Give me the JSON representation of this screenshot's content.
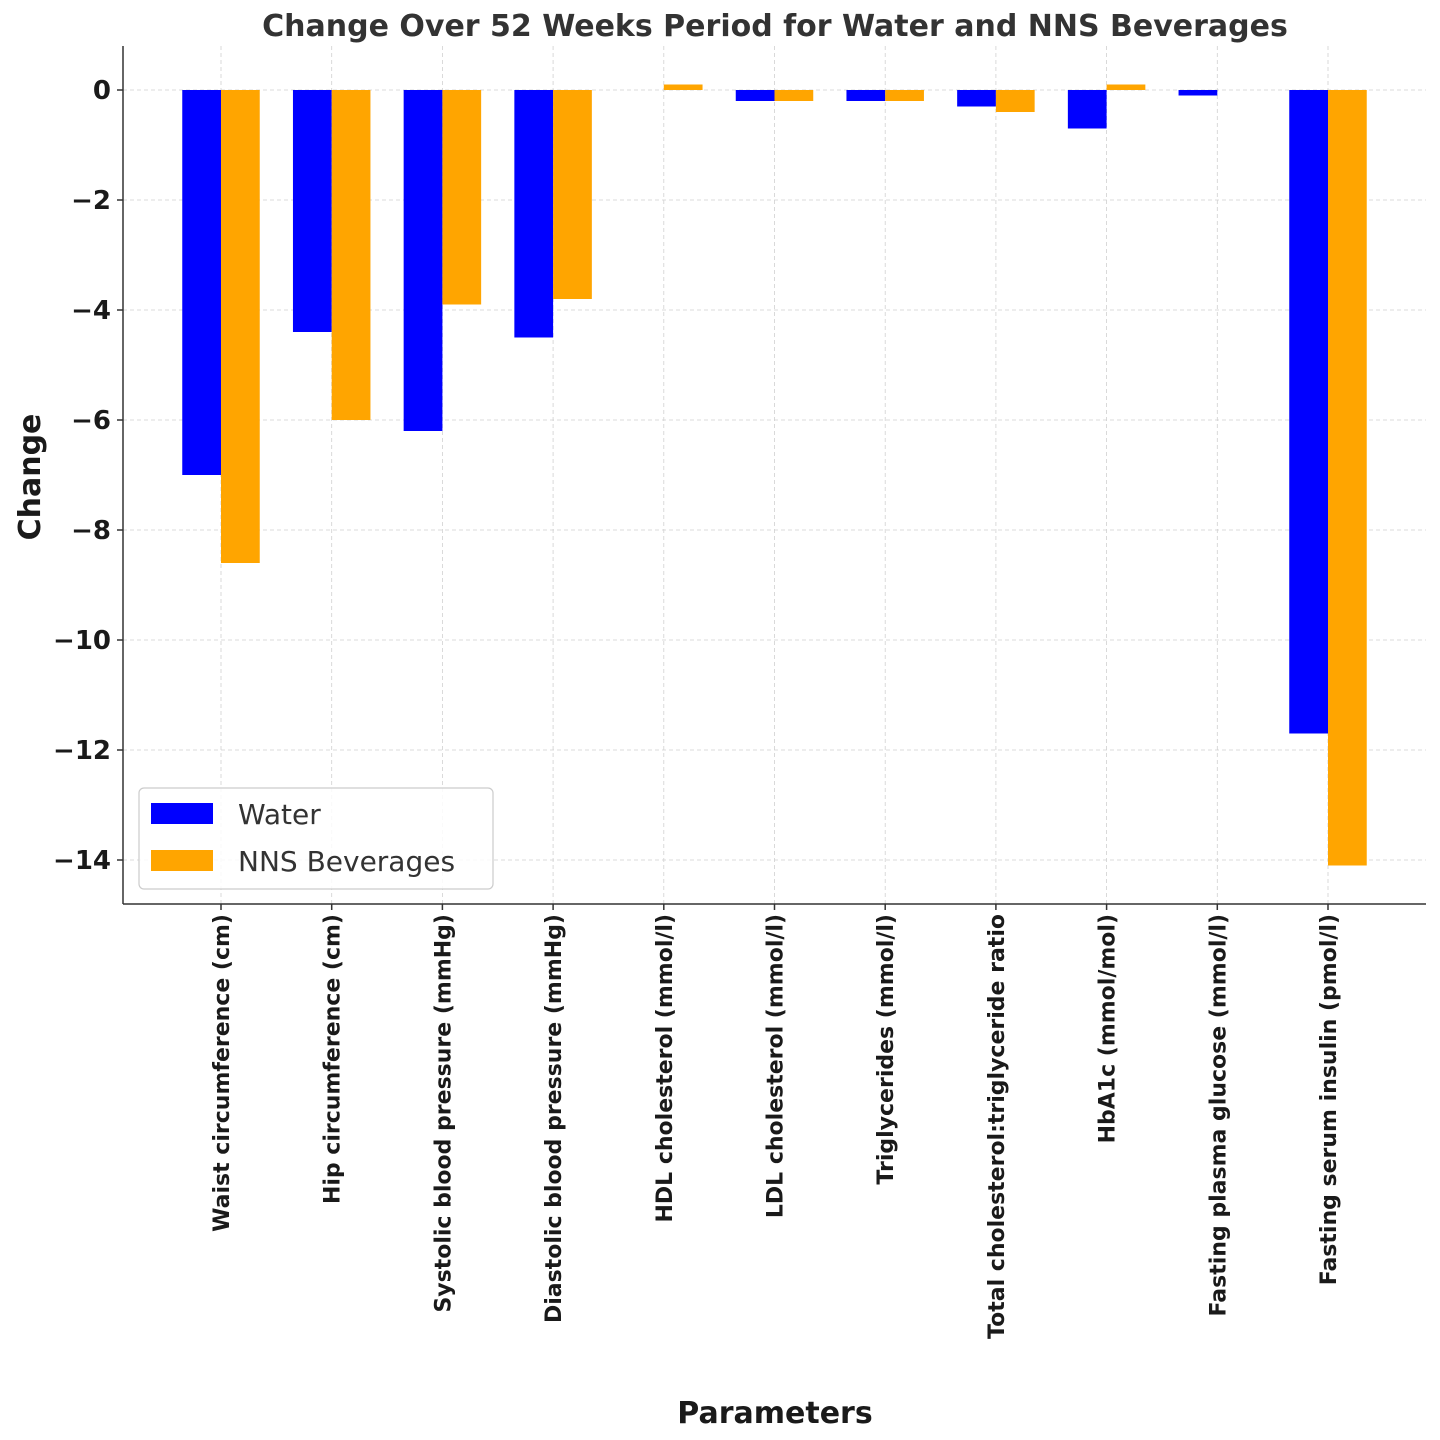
{
  "chart_data": {
    "type": "bar",
    "title": "Change Over 52 Weeks Period for Water and NNS Beverages",
    "xlabel": "Parameters",
    "ylabel": "Change",
    "ylim": [
      -14.8,
      0.8
    ],
    "yticks": [
      0,
      -2,
      -4,
      -6,
      -8,
      -10,
      -12,
      -14
    ],
    "ytick_labels": [
      "0",
      "−2",
      "−4",
      "−6",
      "−8",
      "−10",
      "−12",
      "−14"
    ],
    "grid": true,
    "legend_position": "lower-left",
    "categories": [
      "Waist circumference (cm)",
      "Hip circumference (cm)",
      "Systolic blood pressure (mmHg)",
      "Diastolic blood pressure (mmHg)",
      "HDL cholesterol (mmol/l)",
      "LDL cholesterol (mmol/l)",
      "Triglycerides (mmol/l)",
      "Total cholesterol:triglyceride ratio",
      "HbA1c (mmol/mol)",
      "Fasting plasma glucose (mmol/l)",
      "Fasting serum insulin (pmol/l)"
    ],
    "series": [
      {
        "name": "Water",
        "color": "#0000ff",
        "values": [
          -7.0,
          -4.4,
          -6.2,
          -4.5,
          0.0,
          -0.2,
          -0.2,
          -0.3,
          -0.7,
          -0.1,
          -11.7
        ]
      },
      {
        "name": "NNS Beverages",
        "color": "#ffa500",
        "values": [
          -8.6,
          -6.0,
          -3.9,
          -3.8,
          0.1,
          -0.2,
          -0.2,
          -0.4,
          0.1,
          0.0,
          -14.1
        ]
      }
    ]
  }
}
